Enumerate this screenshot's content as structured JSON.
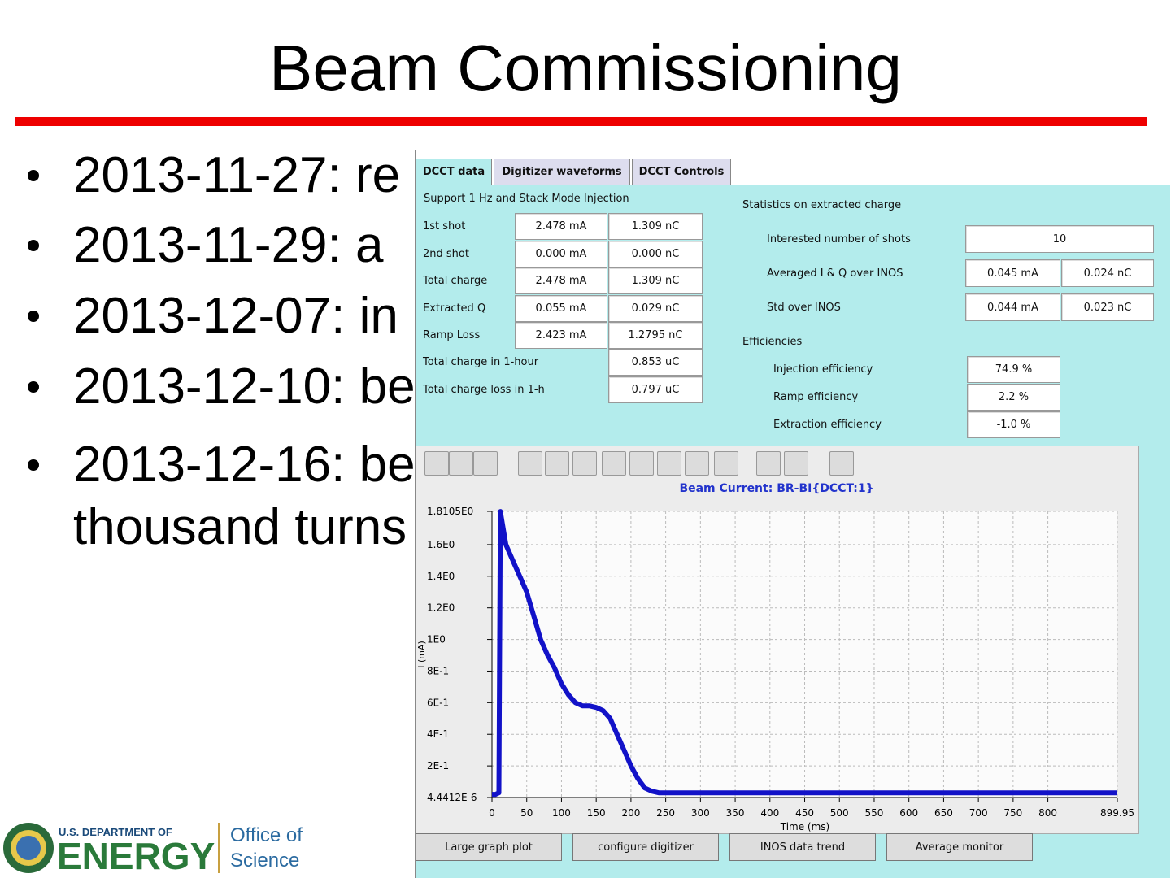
{
  "slide": {
    "title": "Beam Commissioning",
    "bullets": [
      "2013-11-27: re",
      "2013-11-29:  a",
      "2013-12-07: in",
      "2013-12-10: be",
      "2013-12-16: be",
      "thousand turns"
    ],
    "logo": {
      "department": "U.S. DEPARTMENT OF",
      "energy": "ENERGY",
      "office_line1": "Office of",
      "office_line2": "Science"
    }
  },
  "app": {
    "tabs": [
      "DCCT data",
      "Digitizer waveforms",
      "DCCT Controls"
    ],
    "left_panel": {
      "heading": "Support 1 Hz and Stack Mode Injection",
      "rows": [
        {
          "label": "1st shot",
          "values": [
            "2.478 mA",
            "1.309 nC"
          ]
        },
        {
          "label": "2nd shot",
          "values": [
            "0.000 mA",
            "0.000 nC"
          ]
        },
        {
          "label": "Total charge",
          "values": [
            "2.478 mA",
            "1.309 nC"
          ]
        },
        {
          "label": "Extracted Q",
          "values": [
            "0.055 mA",
            "0.029 nC"
          ]
        },
        {
          "label": "Ramp Loss",
          "values": [
            "2.423 mA",
            "1.2795 nC"
          ]
        }
      ],
      "totals": [
        {
          "label": "Total charge in 1-hour",
          "value": "0.853 uC"
        },
        {
          "label": "Total charge loss in 1-h",
          "value": "0.797 uC"
        }
      ]
    },
    "right_panel": {
      "heading": "Statistics on extracted charge",
      "shots": {
        "label": "Interested number of shots",
        "value": "10"
      },
      "stats": [
        {
          "label": "Averaged I & Q over INOS",
          "values": [
            "0.045 mA",
            "0.024 nC"
          ]
        },
        {
          "label": "Std over INOS",
          "values": [
            "0.044 mA",
            "0.023 nC"
          ]
        }
      ],
      "efficiency_heading": "Efficiencies",
      "efficiencies": [
        {
          "label": "Injection efficiency",
          "value": "74.9 %"
        },
        {
          "label": "Ramp efficiency",
          "value": "2.2 %"
        },
        {
          "label": "Extraction efficiency",
          "value": "-1.0 %"
        }
      ]
    },
    "buttons": [
      "Large graph plot",
      "configure digitizer",
      "INOS data trend",
      "Average monitor"
    ]
  },
  "chart_data": {
    "type": "line",
    "title": "Beam Current: BR-BI{DCCT:1}",
    "x_label": "Time (ms)",
    "y_label": "I (mA)",
    "color": "#1212c8",
    "grid": true,
    "x": [
      0,
      5,
      10,
      12,
      20,
      30,
      40,
      50,
      60,
      70,
      80,
      90,
      100,
      110,
      120,
      130,
      140,
      150,
      160,
      170,
      180,
      190,
      200,
      210,
      220,
      230,
      240,
      260,
      300,
      350,
      400,
      450,
      500,
      550,
      600,
      650,
      700,
      750,
      800,
      850,
      899.95
    ],
    "values": [
      0.02,
      0.02,
      0.03,
      1.81,
      1.6,
      1.5,
      1.4,
      1.3,
      1.15,
      1.0,
      0.9,
      0.82,
      0.72,
      0.65,
      0.6,
      0.58,
      0.58,
      0.57,
      0.55,
      0.5,
      0.4,
      0.3,
      0.2,
      0.12,
      0.06,
      0.04,
      0.03,
      0.03,
      0.03,
      0.03,
      0.03,
      0.03,
      0.03,
      0.03,
      0.03,
      0.03,
      0.03,
      0.03,
      0.03,
      0.03,
      0.03
    ],
    "xlim": [
      0,
      899.95
    ],
    "ylim": [
      4.4412e-06,
      1.8105
    ],
    "xticks": [
      0,
      50,
      100,
      150,
      200,
      250,
      300,
      350,
      400,
      450,
      500,
      550,
      600,
      650,
      700,
      750,
      800,
      899.95
    ],
    "yticks": [
      {
        "value": 4.4412e-06,
        "label": "4.4412E-6"
      },
      {
        "value": 0.2,
        "label": "2E-1"
      },
      {
        "value": 0.4,
        "label": "4E-1"
      },
      {
        "value": 0.6,
        "label": "6E-1"
      },
      {
        "value": 0.8,
        "label": "8E-1"
      },
      {
        "value": 1,
        "label": "1E0"
      },
      {
        "value": 1.2,
        "label": "1.2E0"
      },
      {
        "value": 1.4,
        "label": "1.4E0"
      },
      {
        "value": 1.6,
        "label": "1.6E0"
      },
      {
        "value": 1.8105,
        "label": "1.8105E0"
      }
    ]
  }
}
